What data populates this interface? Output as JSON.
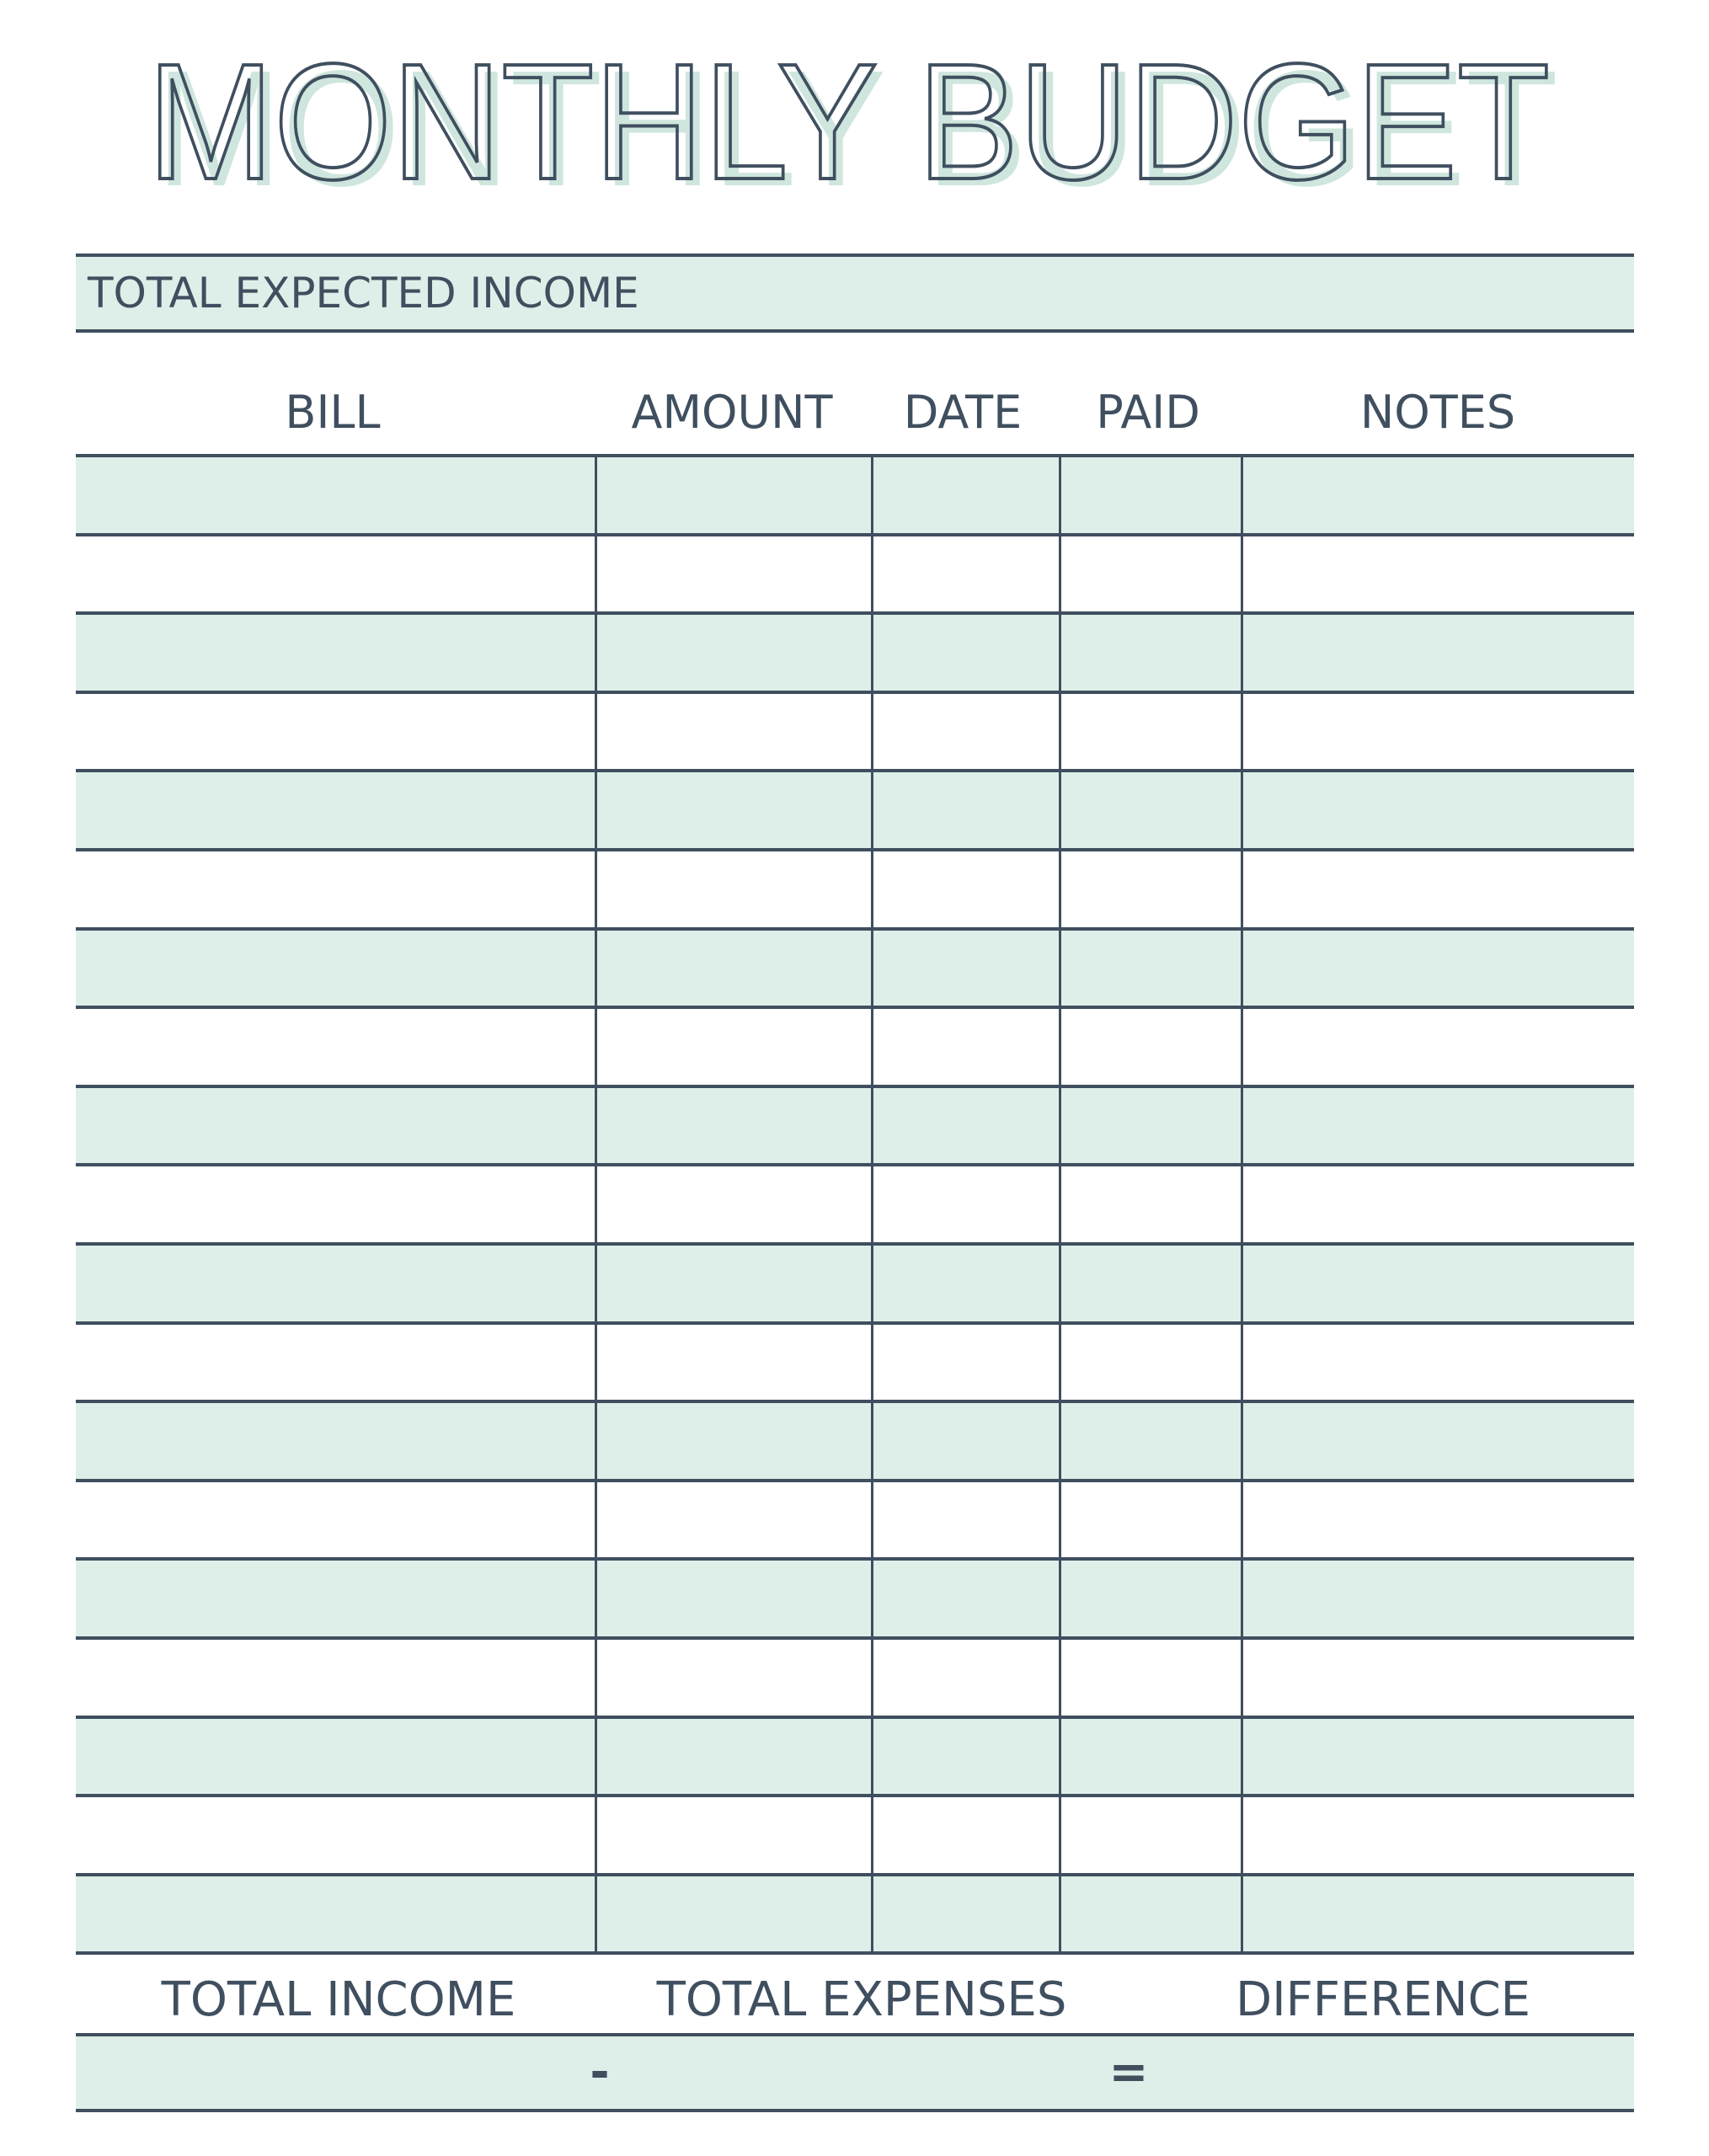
{
  "title": "MONTHLY BUDGET",
  "colors": {
    "accent_fill": "#deefe9",
    "title_shadow": "#cfe6de",
    "line": "#3f4f5f"
  },
  "income": {
    "label": "TOTAL EXPECTED INCOME",
    "value": ""
  },
  "table": {
    "columns": [
      "BILL",
      "AMOUNT",
      "DATE",
      "PAID",
      "NOTES"
    ],
    "rows": [
      {
        "bill": "",
        "amount": "",
        "date": "",
        "paid": "",
        "notes": ""
      },
      {
        "bill": "",
        "amount": "",
        "date": "",
        "paid": "",
        "notes": ""
      },
      {
        "bill": "",
        "amount": "",
        "date": "",
        "paid": "",
        "notes": ""
      },
      {
        "bill": "",
        "amount": "",
        "date": "",
        "paid": "",
        "notes": ""
      },
      {
        "bill": "",
        "amount": "",
        "date": "",
        "paid": "",
        "notes": ""
      },
      {
        "bill": "",
        "amount": "",
        "date": "",
        "paid": "",
        "notes": ""
      },
      {
        "bill": "",
        "amount": "",
        "date": "",
        "paid": "",
        "notes": ""
      },
      {
        "bill": "",
        "amount": "",
        "date": "",
        "paid": "",
        "notes": ""
      },
      {
        "bill": "",
        "amount": "",
        "date": "",
        "paid": "",
        "notes": ""
      },
      {
        "bill": "",
        "amount": "",
        "date": "",
        "paid": "",
        "notes": ""
      },
      {
        "bill": "",
        "amount": "",
        "date": "",
        "paid": "",
        "notes": ""
      },
      {
        "bill": "",
        "amount": "",
        "date": "",
        "paid": "",
        "notes": ""
      },
      {
        "bill": "",
        "amount": "",
        "date": "",
        "paid": "",
        "notes": ""
      },
      {
        "bill": "",
        "amount": "",
        "date": "",
        "paid": "",
        "notes": ""
      },
      {
        "bill": "",
        "amount": "",
        "date": "",
        "paid": "",
        "notes": ""
      },
      {
        "bill": "",
        "amount": "",
        "date": "",
        "paid": "",
        "notes": ""
      },
      {
        "bill": "",
        "amount": "",
        "date": "",
        "paid": "",
        "notes": ""
      },
      {
        "bill": "",
        "amount": "",
        "date": "",
        "paid": "",
        "notes": ""
      },
      {
        "bill": "",
        "amount": "",
        "date": "",
        "paid": "",
        "notes": ""
      }
    ]
  },
  "summary": {
    "total_income_label": "TOTAL INCOME",
    "total_expenses_label": "TOTAL EXPENSES",
    "difference_label": "DIFFERENCE",
    "minus": "-",
    "equals": "="
  }
}
